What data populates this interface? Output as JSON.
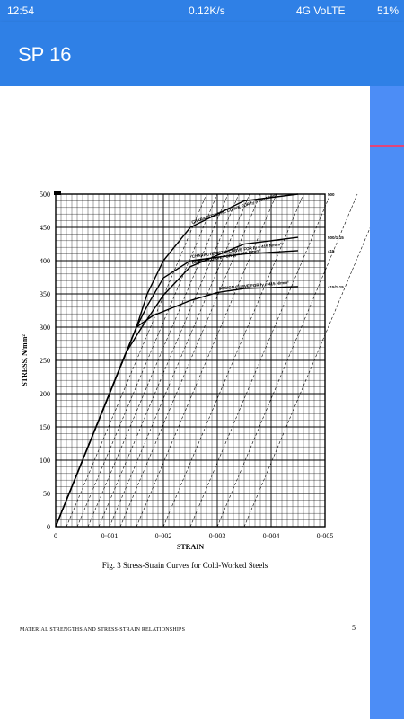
{
  "status_bar": {
    "time": "12:54",
    "network": "0.12K/s",
    "volte": "4G VoLTE",
    "battery": "51%"
  },
  "app_bar": {
    "title": "SP 16"
  },
  "colors": {
    "app_bar": "#2f80e6",
    "scrollbar": "#4c8df6",
    "scroll_thumb": "#e0457a"
  },
  "document": {
    "caption": "Fig. 3 Stress-Strain Curves for Cold-Worked Steels",
    "footer": "MATERIAL STRENGTHS AND STRESS-STRAIN RELATIONSHIPS",
    "page_number": "5"
  },
  "chart_data": {
    "type": "line",
    "xlabel": "STRAIN",
    "ylabel": "STRESS, N/mm²",
    "xlim": [
      0,
      0.005
    ],
    "ylim": [
      0,
      500
    ],
    "x_ticks": [
      "0",
      "0·001",
      "0·002",
      "0·003",
      "0·004",
      "0·005"
    ],
    "y_ticks": [
      "0",
      "50",
      "100",
      "150",
      "200",
      "250",
      "300",
      "350",
      "400",
      "450",
      "500"
    ],
    "grid": true,
    "series": [
      {
        "name": "CHARACTERISTIC CURVE FOR fy = 500 N/mm²",
        "end_label": "500",
        "points": [
          [
            0,
            0
          ],
          [
            0.0015,
            300
          ],
          [
            0.0017,
            350
          ],
          [
            0.002,
            400
          ],
          [
            0.0025,
            450
          ],
          [
            0.0035,
            490
          ],
          [
            0.0045,
            500
          ]
        ]
      },
      {
        "name": "DESIGN CURVE FOR fy = 500 N/mm²",
        "end_label": "500/1·15",
        "points": [
          [
            0,
            0
          ],
          [
            0.0013,
            261
          ],
          [
            0.0016,
            300
          ],
          [
            0.002,
            348
          ],
          [
            0.0025,
            391
          ],
          [
            0.0035,
            425
          ],
          [
            0.0045,
            435
          ]
        ]
      },
      {
        "name": "CHARACTERISTIC CURVE FOR fy = 415 N/mm²",
        "end_label": "415",
        "points": [
          [
            0,
            0
          ],
          [
            0.0015,
            300
          ],
          [
            0.0017,
            332
          ],
          [
            0.002,
            374
          ],
          [
            0.0025,
            400
          ],
          [
            0.0035,
            410
          ],
          [
            0.0045,
            415
          ]
        ]
      },
      {
        "name": "DESIGN CURVE FOR fy = 415 N/mm²",
        "end_label": "415/1·15",
        "points": [
          [
            0,
            0
          ],
          [
            0.0015,
            300
          ],
          [
            0.0018,
            317
          ],
          [
            0.0025,
            340
          ],
          [
            0.003,
            352
          ],
          [
            0.0035,
            358
          ],
          [
            0.0045,
            361
          ]
        ]
      }
    ]
  }
}
